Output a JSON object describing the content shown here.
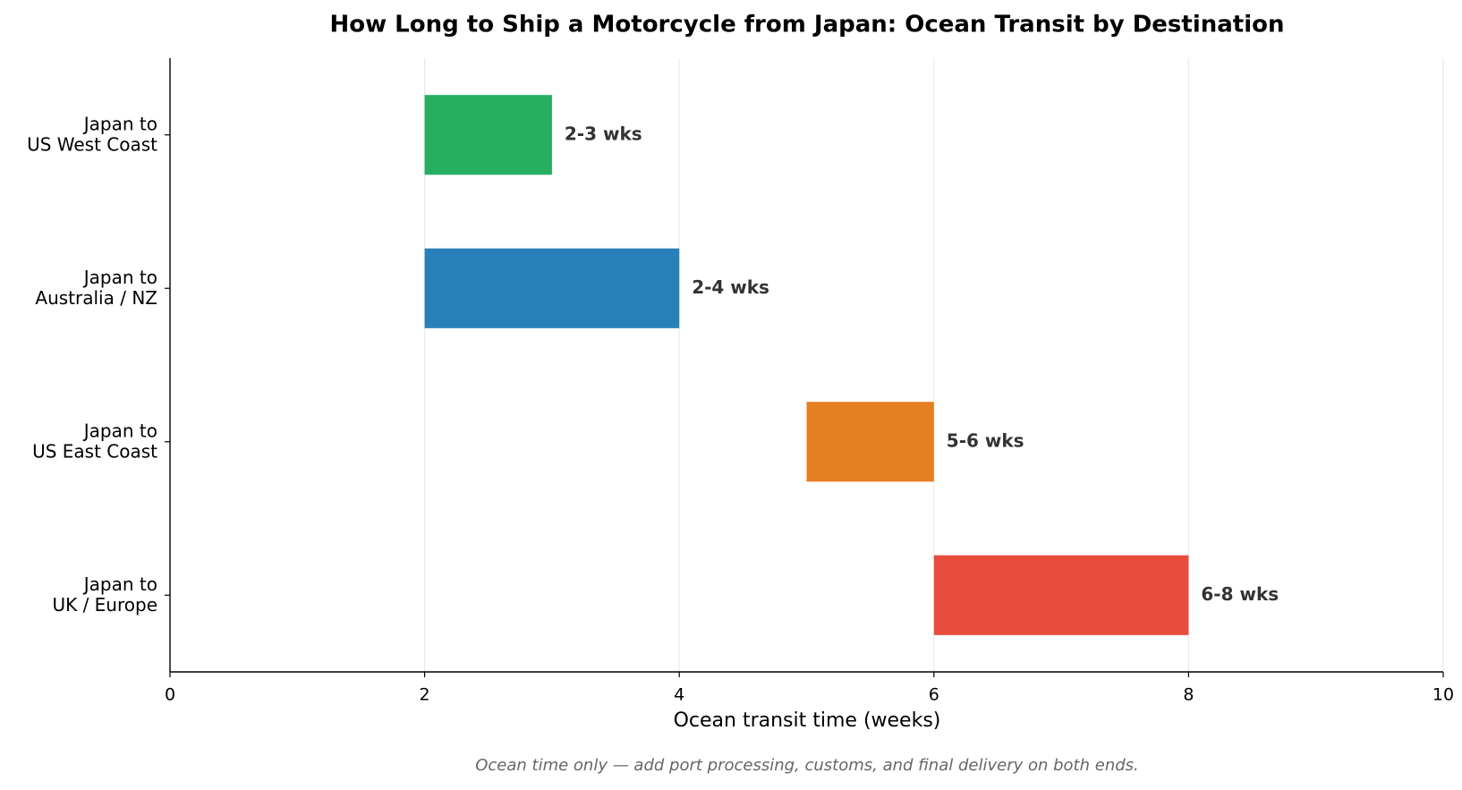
{
  "chart_data": {
    "type": "range-bar",
    "title": "How Long to Ship a Motorcycle from Japan: Ocean Transit by Destination",
    "x_label": "Ocean transit time (weeks)",
    "note": "Ocean time only — add port processing, customs, and final delivery on both ends.",
    "categories": [
      "Japan to\nUS West Coast",
      "Japan to\nAustralia / NZ",
      "Japan to\nUS East Coast",
      "Japan to\nUK / Europe"
    ],
    "starts": [
      2,
      2,
      5,
      6
    ],
    "values": [
      3,
      4,
      6,
      8
    ],
    "value_labels": [
      "2-3 wks",
      "2-4 wks",
      "5-6 wks",
      "6-8 wks"
    ],
    "colors": [
      "#27ae60",
      "#2980b9",
      "#e67e22",
      "#e74c3c"
    ],
    "xlim": [
      0,
      10
    ],
    "xticks": [
      0,
      2,
      4,
      6,
      8,
      10
    ],
    "grid": true
  }
}
